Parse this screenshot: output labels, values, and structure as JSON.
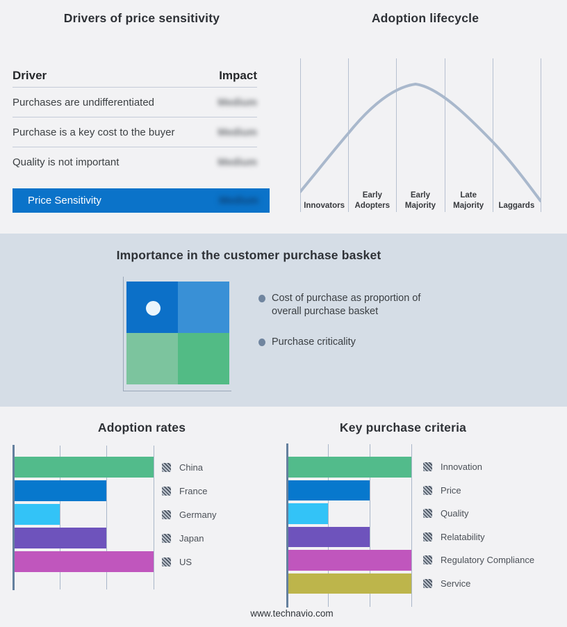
{
  "colors": {
    "page_bg": "#f2f2f4",
    "band_bg": "#d5dde6",
    "accent_blue": "#0b73c9",
    "lifecycle_curve": "#a9b8cc",
    "quadrant": {
      "top_left": "#0c70c8",
      "top_right": "#3990d6",
      "bottom_left": "#7cc49e",
      "bottom_right": "#52bb85"
    }
  },
  "basket_panel": {
    "title": "Importance in the customer purchase basket",
    "bullets": [
      "Cost of purchase as proportion of overall purchase basket",
      "Purchase criticality"
    ]
  },
  "footer": {
    "text": "www.technavio.com"
  },
  "chart_data": [
    {
      "type": "table",
      "title": "Drivers of price sensitivity",
      "columns": [
        "Driver",
        "Impact"
      ],
      "rows": [
        [
          "Purchases are undifferentiated",
          "Medium"
        ],
        [
          "Purchase is a key cost to the buyer",
          "Medium"
        ],
        [
          "Quality is not important",
          "Medium"
        ],
        [
          "Price Sensitivity",
          "Medium"
        ]
      ],
      "notes": "Impact values are rendered blurred; last row is a blue highlight summary row"
    },
    {
      "type": "line",
      "title": "Adoption lifecycle",
      "categories": [
        "Innovators",
        "Early Adopters",
        "Early Majority",
        "Late Majority",
        "Laggards"
      ],
      "curve_shape": "bell",
      "peak_category": "Early Majority",
      "samples_norm_x_y": [
        [
          0,
          0.06
        ],
        [
          0.2,
          0.48
        ],
        [
          0.4,
          0.77
        ],
        [
          0.48,
          0.82
        ],
        [
          0.6,
          0.72
        ],
        [
          0.8,
          0.41
        ],
        [
          1,
          0
        ]
      ],
      "grid": "vertical lines at category boundaries",
      "line_color": "#a9b8cc"
    },
    {
      "type": "bar",
      "title": "Adoption rates",
      "orientation": "horizontal",
      "categories": [
        "China",
        "France",
        "Germany",
        "Japan",
        "US"
      ],
      "values": [
        3,
        2,
        1,
        2,
        3
      ],
      "xlim": [
        0,
        3
      ],
      "gridline_values": [
        0,
        1,
        2,
        3
      ],
      "value_scale": "relative (no numeric axis labels shown)",
      "colors": [
        "#52bb8b",
        "#0778cd",
        "#33c3f7",
        "#6e53bc",
        "#c056bd"
      ],
      "legend_position": "right"
    },
    {
      "type": "bar",
      "title": "Key purchase criteria",
      "orientation": "horizontal",
      "categories": [
        "Innovation",
        "Price",
        "Quality",
        "Relatability",
        "Regulatory Compliance",
        "Service"
      ],
      "values": [
        3,
        2,
        1,
        2,
        3,
        3
      ],
      "xlim": [
        0,
        3
      ],
      "gridline_values": [
        0,
        1,
        2,
        3
      ],
      "value_scale": "relative (no numeric axis labels shown)",
      "colors": [
        "#52bb8b",
        "#0778cd",
        "#33c3f7",
        "#6e53bc",
        "#c056bd",
        "#bdb54b"
      ],
      "legend_position": "right"
    }
  ]
}
